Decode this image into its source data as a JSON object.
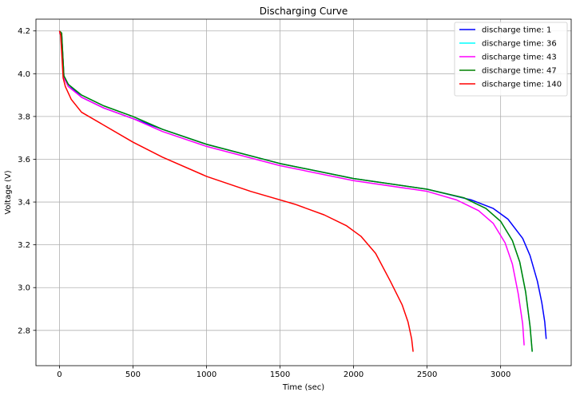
{
  "chart_data": {
    "type": "line",
    "title": "Discharging Curve",
    "xlabel": "Time (sec)",
    "ylabel": "Voltage (V)",
    "xlim": [
      -160,
      3480
    ],
    "ylim": [
      2.635,
      4.255
    ],
    "x_ticks": [
      0,
      500,
      1000,
      1500,
      2000,
      2500,
      3000
    ],
    "y_ticks": [
      2.8,
      3.0,
      3.2,
      3.4,
      3.6,
      3.8,
      4.0,
      4.2
    ],
    "x_tick_labels": [
      "0",
      "500",
      "1000",
      "1500",
      "2000",
      "2500",
      "3000"
    ],
    "y_tick_labels": [
      "2.8",
      "3.0",
      "3.2",
      "3.4",
      "3.6",
      "3.8",
      "4.0",
      "4.2"
    ],
    "grid": true,
    "legend_position": "top-right",
    "series": [
      {
        "name": "discharge time: 1",
        "color": "#0000ff",
        "x": [
          0,
          15,
          30,
          60,
          150,
          300,
          500,
          700,
          1000,
          1500,
          2000,
          2500,
          2800,
          2950,
          3050,
          3150,
          3200,
          3250,
          3280,
          3300,
          3310
        ],
        "y": [
          4.19,
          4.18,
          3.99,
          3.95,
          3.89,
          3.84,
          3.79,
          3.74,
          3.67,
          3.58,
          3.51,
          3.46,
          3.41,
          3.37,
          3.32,
          3.23,
          3.15,
          3.03,
          2.93,
          2.84,
          2.76
        ]
      },
      {
        "name": "discharge time: 36",
        "color": "#00ffff",
        "x": [
          0,
          15,
          30,
          60,
          150,
          300,
          500,
          700,
          1000,
          1500,
          2000,
          2500,
          2750,
          2900,
          3000,
          3080,
          3130,
          3170,
          3200,
          3215
        ],
        "y": [
          4.19,
          4.18,
          3.99,
          3.95,
          3.9,
          3.85,
          3.8,
          3.74,
          3.67,
          3.58,
          3.51,
          3.46,
          3.42,
          3.37,
          3.31,
          3.22,
          3.12,
          2.98,
          2.82,
          2.7
        ]
      },
      {
        "name": "discharge time: 43",
        "color": "#ff00ff",
        "x": [
          0,
          15,
          30,
          60,
          150,
          300,
          500,
          700,
          1000,
          1500,
          2000,
          2500,
          2700,
          2850,
          2950,
          3030,
          3080,
          3120,
          3150,
          3160
        ],
        "y": [
          4.19,
          4.18,
          3.98,
          3.94,
          3.89,
          3.84,
          3.79,
          3.73,
          3.66,
          3.57,
          3.5,
          3.45,
          3.41,
          3.36,
          3.3,
          3.21,
          3.11,
          2.97,
          2.83,
          2.73
        ]
      },
      {
        "name": "discharge time: 47",
        "color": "#008000",
        "x": [
          0,
          15,
          30,
          60,
          150,
          300,
          500,
          700,
          1000,
          1500,
          2000,
          2500,
          2750,
          2900,
          3000,
          3080,
          3130,
          3170,
          3200,
          3215
        ],
        "y": [
          4.2,
          4.19,
          3.99,
          3.95,
          3.9,
          3.85,
          3.8,
          3.74,
          3.67,
          3.58,
          3.51,
          3.46,
          3.42,
          3.37,
          3.31,
          3.22,
          3.12,
          2.98,
          2.82,
          2.7
        ]
      },
      {
        "name": "discharge time: 140",
        "color": "#ff0000",
        "x": [
          0,
          8,
          15,
          25,
          40,
          80,
          150,
          300,
          500,
          700,
          1000,
          1300,
          1600,
          1800,
          1950,
          2050,
          2150,
          2250,
          2330,
          2370,
          2395,
          2405
        ],
        "y": [
          4.2,
          4.18,
          4.1,
          3.98,
          3.94,
          3.88,
          3.82,
          3.76,
          3.68,
          3.61,
          3.52,
          3.45,
          3.39,
          3.34,
          3.29,
          3.24,
          3.16,
          3.03,
          2.92,
          2.84,
          2.76,
          2.7
        ]
      }
    ]
  }
}
